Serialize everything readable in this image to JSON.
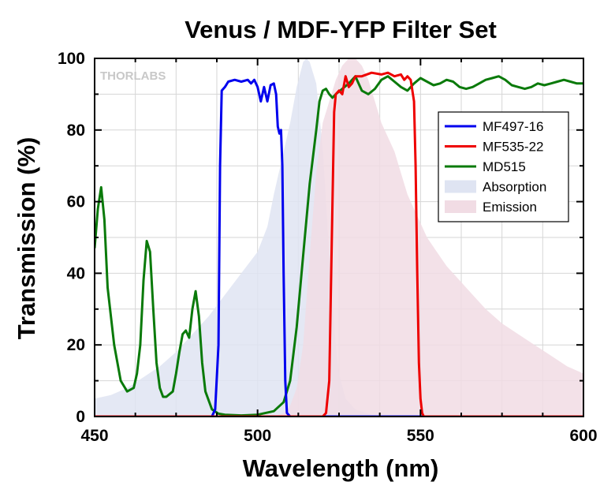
{
  "chart_data": {
    "type": "line",
    "title": "Venus / MDF-YFP Filter Set",
    "xlabel": "Wavelength (nm)",
    "ylabel": "Transmission (%)",
    "xlim": [
      450,
      600
    ],
    "ylim": [
      0,
      100
    ],
    "x_ticks": [
      "450",
      "500",
      "550",
      "600"
    ],
    "y_ticks": [
      "0",
      "20",
      "40",
      "60",
      "80",
      "100"
    ],
    "grid": true,
    "legend_position": "upper-right",
    "watermark": "THORLABS",
    "series": [
      {
        "name": "MF497-16",
        "kind": "line",
        "color": "#0000ee",
        "points": [
          [
            450,
            0
          ],
          [
            486,
            0
          ],
          [
            487,
            2
          ],
          [
            488,
            20
          ],
          [
            488.5,
            70
          ],
          [
            489,
            91
          ],
          [
            490,
            92
          ],
          [
            491,
            93.5
          ],
          [
            493,
            94
          ],
          [
            495,
            93.5
          ],
          [
            497,
            94
          ],
          [
            498,
            93
          ],
          [
            499,
            94
          ],
          [
            500,
            92
          ],
          [
            501,
            88
          ],
          [
            502,
            92
          ],
          [
            503,
            88
          ],
          [
            504,
            92.5
          ],
          [
            505,
            93
          ],
          [
            505.7,
            90
          ],
          [
            506.2,
            81
          ],
          [
            506.7,
            79
          ],
          [
            507.2,
            80
          ],
          [
            507.6,
            70
          ],
          [
            508,
            40
          ],
          [
            508.5,
            10
          ],
          [
            509,
            1
          ],
          [
            510,
            0
          ],
          [
            600,
            0
          ]
        ]
      },
      {
        "name": "MF535-22",
        "kind": "line",
        "color": "#ee0000",
        "points": [
          [
            450,
            0
          ],
          [
            520,
            0
          ],
          [
            521,
            1
          ],
          [
            522,
            10
          ],
          [
            523,
            60
          ],
          [
            523.5,
            85
          ],
          [
            524,
            90
          ],
          [
            525,
            91
          ],
          [
            526,
            90
          ],
          [
            527,
            95
          ],
          [
            528,
            92
          ],
          [
            529,
            93
          ],
          [
            530,
            95
          ],
          [
            532,
            95
          ],
          [
            535,
            96
          ],
          [
            538,
            95.5
          ],
          [
            540,
            96
          ],
          [
            542,
            95
          ],
          [
            544,
            95.5
          ],
          [
            545,
            94
          ],
          [
            546,
            95
          ],
          [
            547,
            94
          ],
          [
            548,
            88
          ],
          [
            548.5,
            70
          ],
          [
            549,
            40
          ],
          [
            549.5,
            15
          ],
          [
            550,
            5
          ],
          [
            550.5,
            1
          ],
          [
            551,
            0
          ],
          [
            600,
            0
          ]
        ]
      },
      {
        "name": "MD515",
        "kind": "line",
        "color": "#0a7a0a",
        "points": [
          [
            450,
            47
          ],
          [
            451,
            58
          ],
          [
            452,
            64
          ],
          [
            453,
            55
          ],
          [
            454,
            36
          ],
          [
            456,
            20
          ],
          [
            458,
            10
          ],
          [
            460,
            7
          ],
          [
            462,
            8
          ],
          [
            463,
            12
          ],
          [
            464,
            20
          ],
          [
            465,
            38
          ],
          [
            466,
            49
          ],
          [
            467,
            46
          ],
          [
            468,
            30
          ],
          [
            469,
            15
          ],
          [
            470,
            8
          ],
          [
            471,
            5.5
          ],
          [
            472,
            5.5
          ],
          [
            474,
            7
          ],
          [
            475,
            12
          ],
          [
            476,
            18
          ],
          [
            477,
            23
          ],
          [
            478,
            24
          ],
          [
            479,
            22
          ],
          [
            480,
            30
          ],
          [
            481,
            35
          ],
          [
            482,
            28
          ],
          [
            483,
            15
          ],
          [
            484,
            7
          ],
          [
            486,
            2
          ],
          [
            488,
            0.8
          ],
          [
            490,
            0.5
          ],
          [
            495,
            0.3
          ],
          [
            500,
            0.5
          ],
          [
            505,
            1.5
          ],
          [
            508,
            4
          ],
          [
            510,
            10
          ],
          [
            512,
            25
          ],
          [
            514,
            45
          ],
          [
            516,
            65
          ],
          [
            518,
            80
          ],
          [
            519,
            88
          ],
          [
            520,
            91
          ],
          [
            521,
            91.5
          ],
          [
            522,
            90
          ],
          [
            523,
            89
          ],
          [
            524,
            90
          ],
          [
            526,
            91.5
          ],
          [
            528,
            93
          ],
          [
            530,
            95
          ],
          [
            532,
            91
          ],
          [
            534,
            90
          ],
          [
            536,
            91.5
          ],
          [
            538,
            94
          ],
          [
            540,
            95
          ],
          [
            542,
            93.5
          ],
          [
            544,
            92
          ],
          [
            546,
            91
          ],
          [
            548,
            93
          ],
          [
            550,
            94.5
          ],
          [
            552,
            93.5
          ],
          [
            554,
            92.5
          ],
          [
            556,
            93
          ],
          [
            558,
            94
          ],
          [
            560,
            93.5
          ],
          [
            562,
            92
          ],
          [
            564,
            91.5
          ],
          [
            566,
            92
          ],
          [
            568,
            93
          ],
          [
            570,
            94
          ],
          [
            572,
            94.5
          ],
          [
            574,
            95
          ],
          [
            576,
            94
          ],
          [
            578,
            92.5
          ],
          [
            580,
            92
          ],
          [
            582,
            91.5
          ],
          [
            584,
            92
          ],
          [
            586,
            93
          ],
          [
            588,
            92.5
          ],
          [
            590,
            93
          ],
          [
            592,
            93.5
          ],
          [
            594,
            94
          ],
          [
            596,
            93.5
          ],
          [
            598,
            93
          ],
          [
            600,
            93
          ]
        ]
      },
      {
        "name": "Absorption",
        "kind": "area",
        "color": "#dfe4f2",
        "points": [
          [
            450,
            5
          ],
          [
            455,
            6
          ],
          [
            460,
            8
          ],
          [
            465,
            11
          ],
          [
            470,
            14
          ],
          [
            475,
            18
          ],
          [
            480,
            23
          ],
          [
            485,
            28
          ],
          [
            490,
            34
          ],
          [
            495,
            40
          ],
          [
            500,
            46
          ],
          [
            503,
            53
          ],
          [
            505,
            62
          ],
          [
            507,
            70
          ],
          [
            510,
            82
          ],
          [
            512,
            92
          ],
          [
            514,
            99
          ],
          [
            515,
            100
          ],
          [
            516,
            99
          ],
          [
            518,
            93
          ],
          [
            520,
            75
          ],
          [
            521,
            60
          ],
          [
            522,
            45
          ],
          [
            523,
            32
          ],
          [
            524,
            20
          ],
          [
            525,
            12
          ],
          [
            527,
            5
          ],
          [
            530,
            2
          ],
          [
            535,
            0.5
          ],
          [
            540,
            0
          ]
        ]
      },
      {
        "name": "Emission",
        "kind": "area",
        "color": "#f1dce4",
        "points": [
          [
            505,
            0
          ],
          [
            508,
            1
          ],
          [
            510,
            3
          ],
          [
            512,
            8
          ],
          [
            514,
            20
          ],
          [
            516,
            45
          ],
          [
            518,
            68
          ],
          [
            520,
            82
          ],
          [
            522,
            88
          ],
          [
            524,
            94
          ],
          [
            526,
            98
          ],
          [
            528,
            100
          ],
          [
            530,
            100
          ],
          [
            532,
            98
          ],
          [
            534,
            94
          ],
          [
            536,
            88
          ],
          [
            538,
            82
          ],
          [
            540,
            78
          ],
          [
            542,
            74
          ],
          [
            544,
            68
          ],
          [
            546,
            62
          ],
          [
            548,
            58
          ],
          [
            550,
            54
          ],
          [
            552,
            50
          ],
          [
            555,
            46
          ],
          [
            558,
            42
          ],
          [
            561,
            39
          ],
          [
            565,
            35
          ],
          [
            570,
            30
          ],
          [
            575,
            26
          ],
          [
            580,
            23
          ],
          [
            585,
            20
          ],
          [
            590,
            17
          ],
          [
            595,
            14
          ],
          [
            600,
            12
          ]
        ]
      }
    ]
  }
}
